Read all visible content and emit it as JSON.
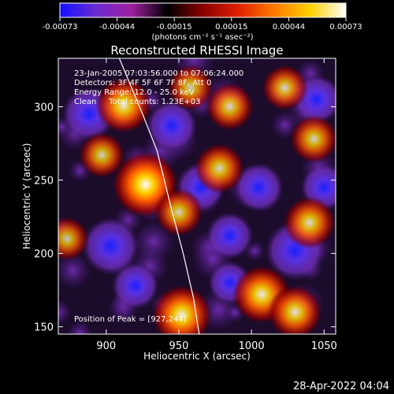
{
  "colorbar": {
    "tick_labels": [
      "-0.00073",
      "-0.00044",
      "-0.00015",
      "0.00015",
      "0.00044",
      "0.00073"
    ],
    "unit_label": "(photons cm⁻² s⁻¹ asec⁻²)",
    "colors": [
      "#1010ff",
      "#6a2bd0",
      "#a020a0",
      "#000000",
      "#8a0000",
      "#e02000",
      "#ff7a00",
      "#ffd000",
      "#ffffff"
    ]
  },
  "chart_data": {
    "type": "heatmap",
    "title": "Reconstructed RHESSI Image",
    "xlabel": "Heliocentric X (arcsec)",
    "ylabel": "Heliocentric Y (arcsec)",
    "xlim": [
      867,
      1058
    ],
    "ylim": [
      145,
      333
    ],
    "x_ticks": [
      "900",
      "950",
      "1000",
      "1050"
    ],
    "y_ticks": [
      "150",
      "200",
      "250",
      "300"
    ],
    "zlim": [
      -0.00073,
      0.00073
    ],
    "annotations": [
      "23-Jan-2005 07:03:56.000 to 07:06:24.000",
      "Detectors: 3F 4F 5F 6F 7F 8F, Att 0",
      "Energy Range: 12.0 - 25.0 keV",
      "Clean     Total counts: 1.23E+03"
    ],
    "peak_label": "Position of Peak = [927,244]",
    "peak": [
      927,
      244
    ],
    "hot_spots": [
      {
        "x": 927,
        "y": 247,
        "level": 1.0
      },
      {
        "x": 912,
        "y": 301,
        "level": 0.75
      },
      {
        "x": 952,
        "y": 158,
        "level": 0.85
      },
      {
        "x": 1007,
        "y": 172,
        "level": 0.8
      },
      {
        "x": 1030,
        "y": 160,
        "level": 0.7
      },
      {
        "x": 1040,
        "y": 221,
        "level": 0.65
      },
      {
        "x": 1043,
        "y": 278,
        "level": 0.55
      },
      {
        "x": 978,
        "y": 258,
        "level": 0.6
      },
      {
        "x": 985,
        "y": 300,
        "level": 0.55
      },
      {
        "x": 897,
        "y": 267,
        "level": 0.5
      },
      {
        "x": 1023,
        "y": 313,
        "level": 0.5
      },
      {
        "x": 958,
        "y": 313,
        "level": 0.5
      },
      {
        "x": 950,
        "y": 228,
        "level": 0.55
      },
      {
        "x": 873,
        "y": 210,
        "level": 0.45
      }
    ],
    "cold_spots": [
      {
        "x": 888,
        "y": 295,
        "level": 0.6
      },
      {
        "x": 945,
        "y": 287,
        "level": 0.55
      },
      {
        "x": 903,
        "y": 205,
        "level": 0.7
      },
      {
        "x": 965,
        "y": 245,
        "level": 0.5
      },
      {
        "x": 1030,
        "y": 202,
        "level": 0.75
      },
      {
        "x": 985,
        "y": 212,
        "level": 0.45
      },
      {
        "x": 1005,
        "y": 245,
        "level": 0.5
      },
      {
        "x": 1050,
        "y": 245,
        "level": 0.45
      },
      {
        "x": 920,
        "y": 178,
        "level": 0.45
      },
      {
        "x": 1045,
        "y": 305,
        "level": 0.5
      },
      {
        "x": 985,
        "y": 180,
        "level": 0.35
      }
    ],
    "limb_curve": [
      [
        909,
        333
      ],
      [
        925,
        295
      ],
      [
        935,
        270
      ],
      [
        945,
        230
      ],
      [
        953,
        200
      ],
      [
        960,
        170
      ],
      [
        964,
        145
      ]
    ]
  },
  "footer": {
    "timestamp": "28-Apr-2022 04:04"
  }
}
